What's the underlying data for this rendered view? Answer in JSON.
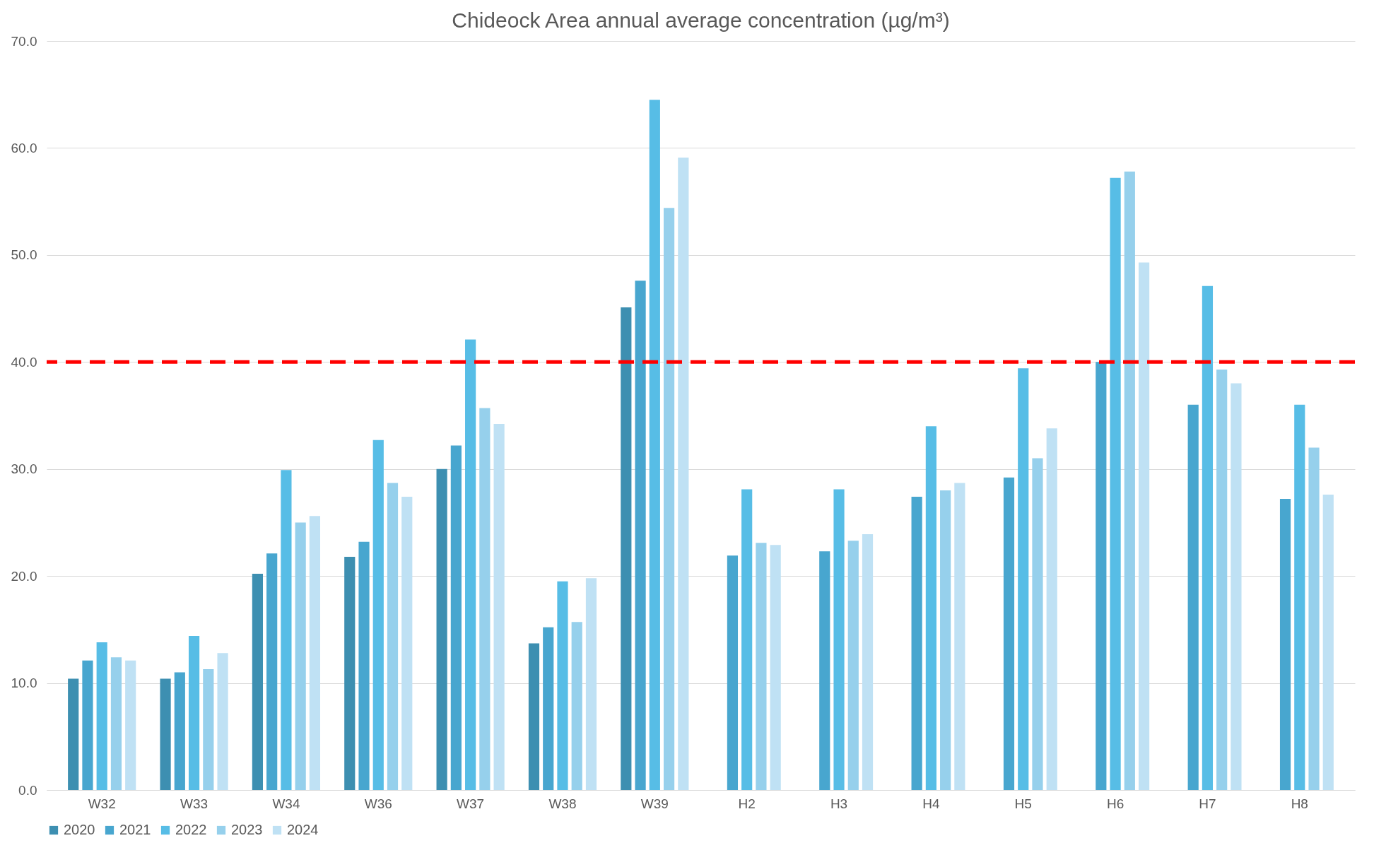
{
  "chart_data": {
    "type": "bar",
    "title": "Chideock Area annual average concentration (µg/m³)",
    "categories": [
      "W32",
      "W33",
      "W34",
      "W36",
      "W37",
      "W38",
      "W39",
      "H2",
      "H3",
      "H4",
      "H5",
      "H6",
      "H7",
      "H8"
    ],
    "series": [
      {
        "name": "2020",
        "color": "#3d8fb1",
        "values": [
          10.4,
          10.4,
          20.2,
          21.8,
          30.0,
          13.7,
          45.1,
          null,
          null,
          null,
          null,
          null,
          null,
          null
        ]
      },
      {
        "name": "2021",
        "color": "#48a6cf",
        "values": [
          12.1,
          11.0,
          22.1,
          23.2,
          32.2,
          15.2,
          47.6,
          21.9,
          22.3,
          27.4,
          29.2,
          40.0,
          36.0,
          27.2
        ]
      },
      {
        "name": "2022",
        "color": "#57bde6",
        "values": [
          13.8,
          14.4,
          29.9,
          32.7,
          42.1,
          19.5,
          64.5,
          28.1,
          28.1,
          34.0,
          39.4,
          57.2,
          47.1,
          36.0
        ]
      },
      {
        "name": "2023",
        "color": "#96d0ec",
        "values": [
          12.4,
          11.3,
          25.0,
          28.7,
          35.7,
          15.7,
          54.4,
          23.1,
          23.3,
          28.0,
          31.0,
          57.8,
          39.3,
          32.0
        ]
      },
      {
        "name": "2024",
        "color": "#bfe1f4",
        "values": [
          12.1,
          12.8,
          25.6,
          27.4,
          34.2,
          19.8,
          59.1,
          22.9,
          23.9,
          28.7,
          33.8,
          49.3,
          38.0,
          27.6
        ]
      }
    ],
    "ylim": [
      0,
      70
    ],
    "yticks": [
      {
        "value": 0,
        "label": "0.0"
      },
      {
        "value": 10,
        "label": "10.0"
      },
      {
        "value": 20,
        "label": "20.0"
      },
      {
        "value": 30,
        "label": "30.0"
      },
      {
        "value": 40,
        "label": "40.0"
      },
      {
        "value": 50,
        "label": "50.0"
      },
      {
        "value": 60,
        "label": "60.0"
      },
      {
        "value": 70,
        "label": "70.0"
      }
    ],
    "grid": "y",
    "legend": "bottom",
    "ref_lines": [
      {
        "axis": "y",
        "value": 40,
        "color": "#ff0000",
        "line_style": "dashed"
      }
    ]
  }
}
